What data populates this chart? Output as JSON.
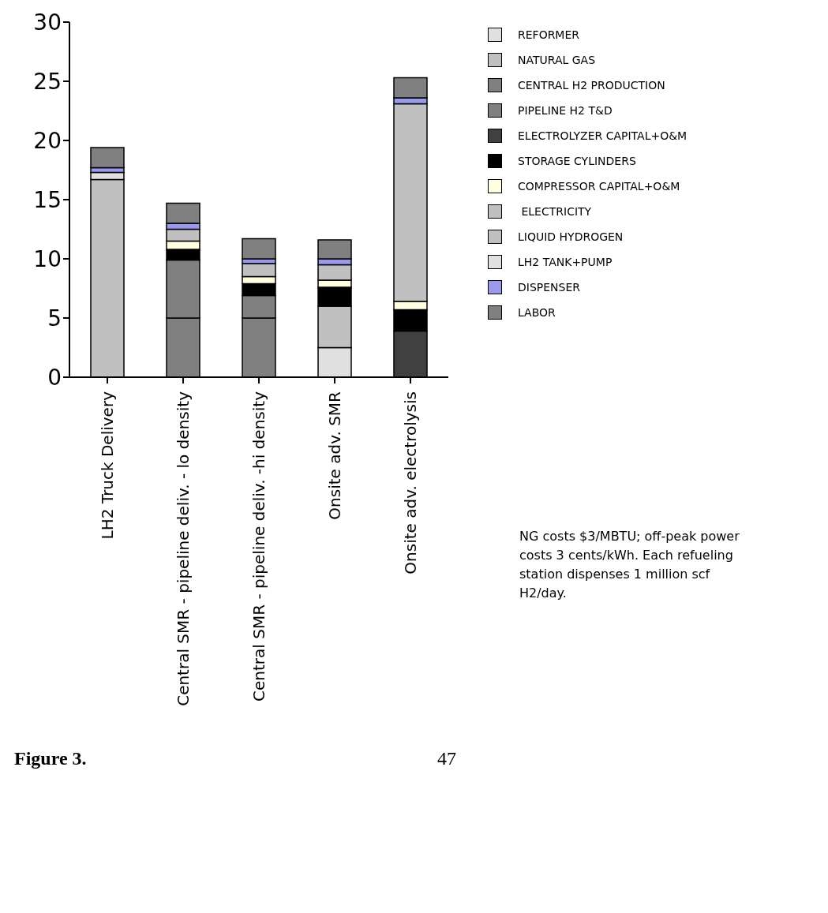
{
  "chart_data": {
    "type": "bar",
    "stacked": true,
    "categories": [
      "LH2 Truck Delivery",
      "Central SMR - pipeline deliv. - lo density",
      "Central SMR - pipeline deliv. -hi density",
      "Onsite adv. SMR",
      "Onsite adv. electrolysis"
    ],
    "series": [
      {
        "name": "REFORMER",
        "color": "#e0e0e0",
        "values": [
          null,
          null,
          null,
          2.5,
          null
        ]
      },
      {
        "name": "NATURAL GAS",
        "color": "#c0c0c0",
        "values": [
          null,
          null,
          null,
          3.5,
          null
        ]
      },
      {
        "name": "CENTRAL H2 PRODUCTION",
        "color": "#808080",
        "values": [
          null,
          5.0,
          5.0,
          null,
          null
        ]
      },
      {
        "name": "PIPELINE H2 T&D",
        "color": "#808080",
        "values": [
          null,
          4.9,
          1.9,
          null,
          null
        ]
      },
      {
        "name": "ELECTROLYZER CAPITAL+O&M",
        "color": "#404040",
        "values": [
          null,
          null,
          null,
          null,
          3.9
        ]
      },
      {
        "name": "STORAGE CYLINDERS",
        "color": "#000000",
        "values": [
          null,
          0.9,
          1.0,
          1.6,
          1.8
        ]
      },
      {
        "name": "COMPRESSOR CAPITAL+O&M",
        "color": "#ffffe0",
        "values": [
          null,
          0.7,
          0.6,
          0.6,
          0.7
        ]
      },
      {
        "name": " ELECTRICITY",
        "color": "#c0c0c0",
        "values": [
          null,
          1.0,
          1.1,
          1.3,
          16.7
        ]
      },
      {
        "name": "LIQUID HYDROGEN",
        "color": "#c0c0c0",
        "values": [
          16.7,
          null,
          null,
          null,
          null
        ]
      },
      {
        "name": "LH2 TANK+PUMP",
        "color": "#e0e0e0",
        "values": [
          0.6,
          null,
          null,
          null,
          null
        ]
      },
      {
        "name": "DISPENSER",
        "color": "#9999ee",
        "values": [
          0.4,
          0.5,
          0.4,
          0.5,
          0.5
        ]
      },
      {
        "name": "LABOR",
        "color": "#808080",
        "values": [
          1.7,
          1.7,
          1.7,
          1.6,
          1.7
        ]
      }
    ],
    "ylim": [
      0,
      30
    ],
    "yticks": [
      0,
      5,
      10,
      15,
      20,
      25,
      30
    ],
    "grid": false,
    "legend": "right",
    "annotations": [
      "NG costs $3/MBTU; off-peak power costs 3 cents/kWh. Each refueling station dispenses 1 million scf H2/day.",
      "Figure 3.",
      "47"
    ]
  }
}
